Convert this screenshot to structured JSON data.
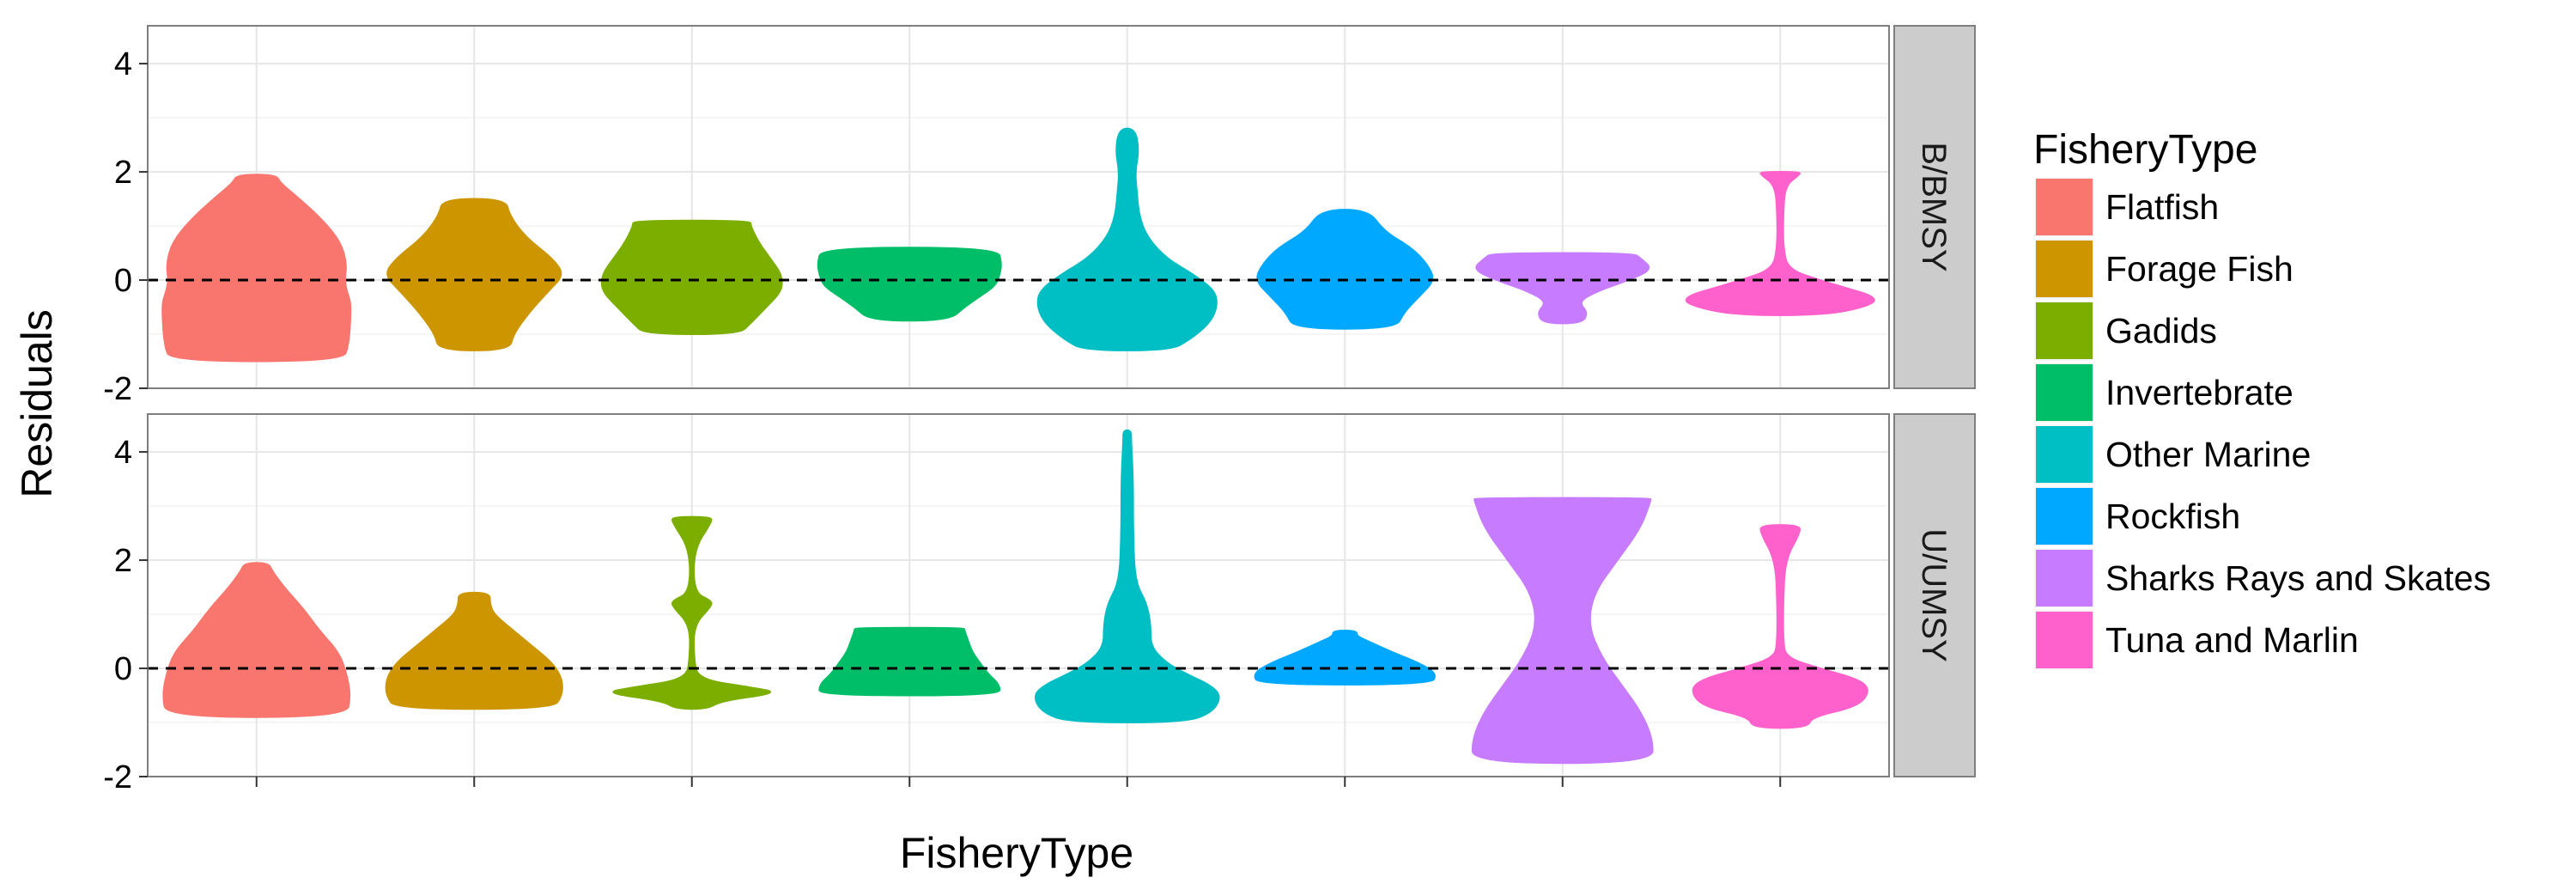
{
  "chart_data": {
    "type": "violin",
    "title": "",
    "xlabel": "FisheryType",
    "ylabel": "Residuals",
    "ylim": [
      -2,
      4.7
    ],
    "yticks": [
      -2,
      0,
      2,
      4
    ],
    "reference_line": 0,
    "grid": true,
    "legend_position": "right",
    "legend_title": "FisheryType",
    "categories": [
      "Flatfish",
      "Forage Fish",
      "Gadids",
      "Invertebrate",
      "Other Marine",
      "Rockfish",
      "Sharks Rays and Skates",
      "Tuna and Marlin"
    ],
    "colors": [
      "#F8766D",
      "#CD9600",
      "#7CAE00",
      "#00BE67",
      "#00BFC4",
      "#00A9FF",
      "#C77CFF",
      "#FF61CC"
    ],
    "panels": [
      {
        "label": "B/BMSY",
        "violins": [
          {
            "category": "Flatfish",
            "profile": [
              [
                -1.5,
                0.44
              ],
              [
                -1.2,
                0.47
              ],
              [
                -0.7,
                0.48
              ],
              [
                -0.4,
                0.48
              ],
              [
                -0.2,
                0.46
              ],
              [
                0.0,
                0.45
              ],
              [
                0.3,
                0.46
              ],
              [
                0.7,
                0.43
              ],
              [
                1.1,
                0.34
              ],
              [
                1.5,
                0.22
              ],
              [
                1.8,
                0.12
              ],
              [
                1.95,
                0.1
              ]
            ]
          },
          {
            "category": "Forage Fish",
            "profile": [
              [
                -1.3,
                0.18
              ],
              [
                -1.0,
                0.2
              ],
              [
                -0.6,
                0.28
              ],
              [
                -0.2,
                0.38
              ],
              [
                0.1,
                0.46
              ],
              [
                0.4,
                0.4
              ],
              [
                0.8,
                0.26
              ],
              [
                1.2,
                0.18
              ],
              [
                1.5,
                0.16
              ]
            ]
          },
          {
            "category": "Gadids",
            "profile": [
              [
                -1.0,
                0.24
              ],
              [
                -0.8,
                0.3
              ],
              [
                -0.5,
                0.38
              ],
              [
                -0.2,
                0.46
              ],
              [
                0.1,
                0.46
              ],
              [
                0.4,
                0.4
              ],
              [
                0.7,
                0.34
              ],
              [
                1.0,
                0.3
              ],
              [
                1.1,
                0.3
              ]
            ]
          },
          {
            "category": "Invertebrate",
            "profile": [
              [
                -0.75,
                0.2
              ],
              [
                -0.5,
                0.28
              ],
              [
                -0.3,
                0.36
              ],
              [
                -0.1,
                0.44
              ],
              [
                0.1,
                0.46
              ],
              [
                0.3,
                0.47
              ],
              [
                0.6,
                0.45
              ]
            ]
          },
          {
            "category": "Other Marine",
            "profile": [
              [
                -1.3,
                0.22
              ],
              [
                -1.1,
                0.32
              ],
              [
                -0.8,
                0.42
              ],
              [
                -0.5,
                0.46
              ],
              [
                -0.2,
                0.45
              ],
              [
                0.1,
                0.34
              ],
              [
                0.4,
                0.2
              ],
              [
                0.8,
                0.1
              ],
              [
                1.2,
                0.06
              ],
              [
                1.6,
                0.05
              ],
              [
                2.0,
                0.04
              ],
              [
                2.4,
                0.06
              ],
              [
                2.8,
                0.04
              ]
            ]
          },
          {
            "category": "Rockfish",
            "profile": [
              [
                -0.9,
                0.26
              ],
              [
                -0.6,
                0.3
              ],
              [
                -0.3,
                0.38
              ],
              [
                0.0,
                0.46
              ],
              [
                0.3,
                0.42
              ],
              [
                0.6,
                0.34
              ],
              [
                0.9,
                0.2
              ],
              [
                1.3,
                0.12
              ]
            ]
          },
          {
            "category": "Sharks Rays and Skates",
            "profile": [
              [
                -0.8,
                0.1
              ],
              [
                -0.6,
                0.13
              ],
              [
                -0.4,
                0.08
              ],
              [
                -0.2,
                0.18
              ],
              [
                0.0,
                0.34
              ],
              [
                0.2,
                0.46
              ],
              [
                0.4,
                0.4
              ],
              [
                0.5,
                0.36
              ]
            ]
          },
          {
            "category": "Tuna and Marlin",
            "profile": [
              [
                -0.65,
                0.24
              ],
              [
                -0.45,
                0.48
              ],
              [
                -0.3,
                0.48
              ],
              [
                -0.15,
                0.34
              ],
              [
                0.0,
                0.2
              ],
              [
                0.2,
                0.04
              ],
              [
                0.6,
                0.015
              ],
              [
                1.2,
                0.015
              ],
              [
                1.75,
                0.025
              ],
              [
                1.95,
                0.1
              ],
              [
                2.0,
                0.1
              ]
            ]
          }
        ]
      },
      {
        "label": "U/UMSY",
        "violins": [
          {
            "category": "Flatfish",
            "profile": [
              [
                -0.9,
                0.46
              ],
              [
                -0.5,
                0.48
              ],
              [
                -0.1,
                0.46
              ],
              [
                0.3,
                0.42
              ],
              [
                0.7,
                0.32
              ],
              [
                1.1,
                0.24
              ],
              [
                1.5,
                0.14
              ],
              [
                1.8,
                0.08
              ],
              [
                1.95,
                0.06
              ]
            ]
          },
          {
            "category": "Forage Fish",
            "profile": [
              [
                -0.75,
                0.4
              ],
              [
                -0.5,
                0.45
              ],
              [
                -0.2,
                0.45
              ],
              [
                0.1,
                0.4
              ],
              [
                0.4,
                0.3
              ],
              [
                0.7,
                0.2
              ],
              [
                1.0,
                0.1
              ],
              [
                1.2,
                0.08
              ],
              [
                1.4,
                0.08
              ]
            ]
          },
          {
            "category": "Gadids",
            "profile": [
              [
                -0.75,
                0.08
              ],
              [
                -0.6,
                0.15
              ],
              [
                -0.45,
                0.45
              ],
              [
                -0.35,
                0.3
              ],
              [
                -0.2,
                0.03
              ],
              [
                0.2,
                0.01
              ],
              [
                0.8,
                0.01
              ],
              [
                1.15,
                0.1
              ],
              [
                1.25,
                0.1
              ],
              [
                1.4,
                0.01
              ],
              [
                2.2,
                0.01
              ],
              [
                2.7,
                0.1
              ],
              [
                2.8,
                0.1
              ]
            ]
          },
          {
            "category": "Invertebrate",
            "profile": [
              [
                -0.5,
                0.46
              ],
              [
                -0.3,
                0.46
              ],
              [
                -0.1,
                0.4
              ],
              [
                0.1,
                0.36
              ],
              [
                0.3,
                0.32
              ],
              [
                0.5,
                0.3
              ],
              [
                0.7,
                0.28
              ],
              [
                0.75,
                0.28
              ]
            ]
          },
          {
            "category": "Other Marine",
            "profile": [
              [
                -1.0,
                0.3
              ],
              [
                -0.8,
                0.44
              ],
              [
                -0.5,
                0.48
              ],
              [
                -0.3,
                0.42
              ],
              [
                -0.1,
                0.3
              ],
              [
                0.1,
                0.2
              ],
              [
                0.4,
                0.12
              ],
              [
                0.8,
                0.12
              ],
              [
                1.2,
                0.1
              ],
              [
                1.6,
                0.04
              ],
              [
                2.5,
                0.03
              ],
              [
                3.5,
                0.03
              ],
              [
                4.2,
                0.02
              ],
              [
                4.4,
                0.02
              ]
            ]
          },
          {
            "category": "Rockfish",
            "profile": [
              [
                -0.3,
                0.44
              ],
              [
                -0.1,
                0.47
              ],
              [
                0.1,
                0.38
              ],
              [
                0.3,
                0.24
              ],
              [
                0.5,
                0.12
              ],
              [
                0.6,
                0.06
              ],
              [
                0.7,
                0.06
              ]
            ]
          },
          {
            "category": "Sharks Rays and Skates",
            "profile": [
              [
                -1.75,
                0.46
              ],
              [
                -1.3,
                0.46
              ],
              [
                -0.8,
                0.4
              ],
              [
                -0.3,
                0.3
              ],
              [
                0.2,
                0.2
              ],
              [
                0.8,
                0.13
              ],
              [
                1.4,
                0.16
              ],
              [
                2.0,
                0.28
              ],
              [
                2.6,
                0.4
              ],
              [
                3.1,
                0.45
              ],
              [
                3.15,
                0.45
              ]
            ]
          },
          {
            "category": "Tuna and Marlin",
            "profile": [
              [
                -1.1,
                0.14
              ],
              [
                -0.9,
                0.16
              ],
              [
                -0.7,
                0.4
              ],
              [
                -0.4,
                0.46
              ],
              [
                -0.2,
                0.4
              ],
              [
                0.0,
                0.2
              ],
              [
                0.2,
                0.03
              ],
              [
                0.5,
                0.015
              ],
              [
                1.2,
                0.015
              ],
              [
                2.0,
                0.025
              ],
              [
                2.5,
                0.1
              ],
              [
                2.65,
                0.1
              ]
            ]
          }
        ]
      }
    ]
  }
}
